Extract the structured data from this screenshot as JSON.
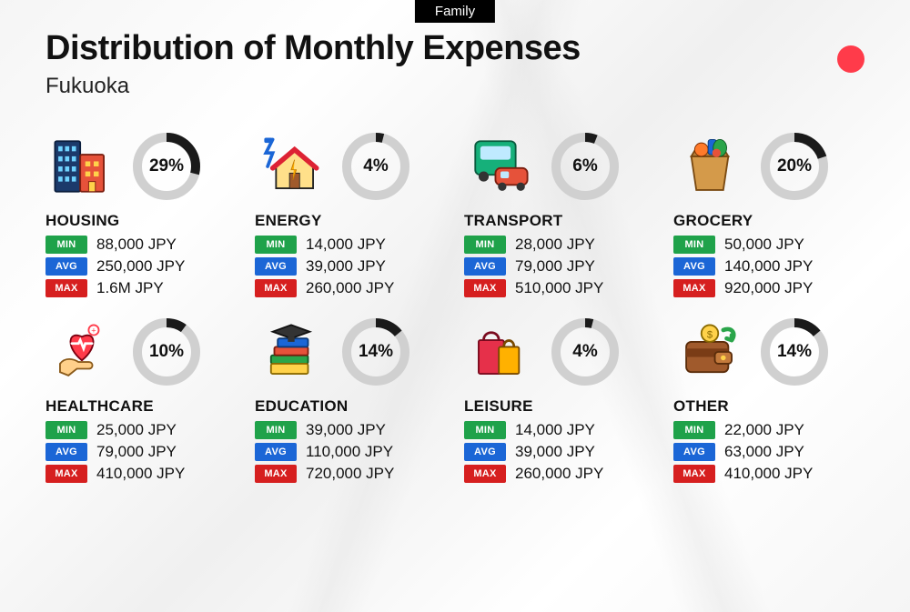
{
  "header": {
    "tag": "Family",
    "title": "Distribution of Monthly Expenses",
    "subtitle": "Fukuoka"
  },
  "colors": {
    "tag_bg": "#000000",
    "tag_fg": "#ffffff",
    "accent_dot": "#ff3b4a",
    "donut_track": "#d0d0d0",
    "donut_fill": "#1a1a1a",
    "min_bg": "#1fa24a",
    "avg_bg": "#1b66d6",
    "max_bg": "#d61f1f",
    "text": "#111111"
  },
  "stat_labels": {
    "min": "MIN",
    "avg": "AVG",
    "max": "MAX"
  },
  "donut": {
    "radius": 32,
    "stroke_width": 10
  },
  "categories": [
    {
      "id": "housing",
      "name": "HOUSING",
      "percent": 29,
      "min": "88,000 JPY",
      "avg": "250,000 JPY",
      "max": "1.6M JPY",
      "icon": "building"
    },
    {
      "id": "energy",
      "name": "ENERGY",
      "percent": 4,
      "min": "14,000 JPY",
      "avg": "39,000 JPY",
      "max": "260,000 JPY",
      "icon": "house-bolt"
    },
    {
      "id": "transport",
      "name": "TRANSPORT",
      "percent": 6,
      "min": "28,000 JPY",
      "avg": "79,000 JPY",
      "max": "510,000 JPY",
      "icon": "bus-car"
    },
    {
      "id": "grocery",
      "name": "GROCERY",
      "percent": 20,
      "min": "50,000 JPY",
      "avg": "140,000 JPY",
      "max": "920,000 JPY",
      "icon": "groceries"
    },
    {
      "id": "healthcare",
      "name": "HEALTHCARE",
      "percent": 10,
      "min": "25,000 JPY",
      "avg": "79,000 JPY",
      "max": "410,000 JPY",
      "icon": "heart-hand"
    },
    {
      "id": "education",
      "name": "EDUCATION",
      "percent": 14,
      "min": "39,000 JPY",
      "avg": "110,000 JPY",
      "max": "720,000 JPY",
      "icon": "books-cap"
    },
    {
      "id": "leisure",
      "name": "LEISURE",
      "percent": 4,
      "min": "14,000 JPY",
      "avg": "39,000 JPY",
      "max": "260,000 JPY",
      "icon": "shopping"
    },
    {
      "id": "other",
      "name": "OTHER",
      "percent": 14,
      "min": "22,000 JPY",
      "avg": "63,000 JPY",
      "max": "410,000 JPY",
      "icon": "wallet"
    }
  ]
}
